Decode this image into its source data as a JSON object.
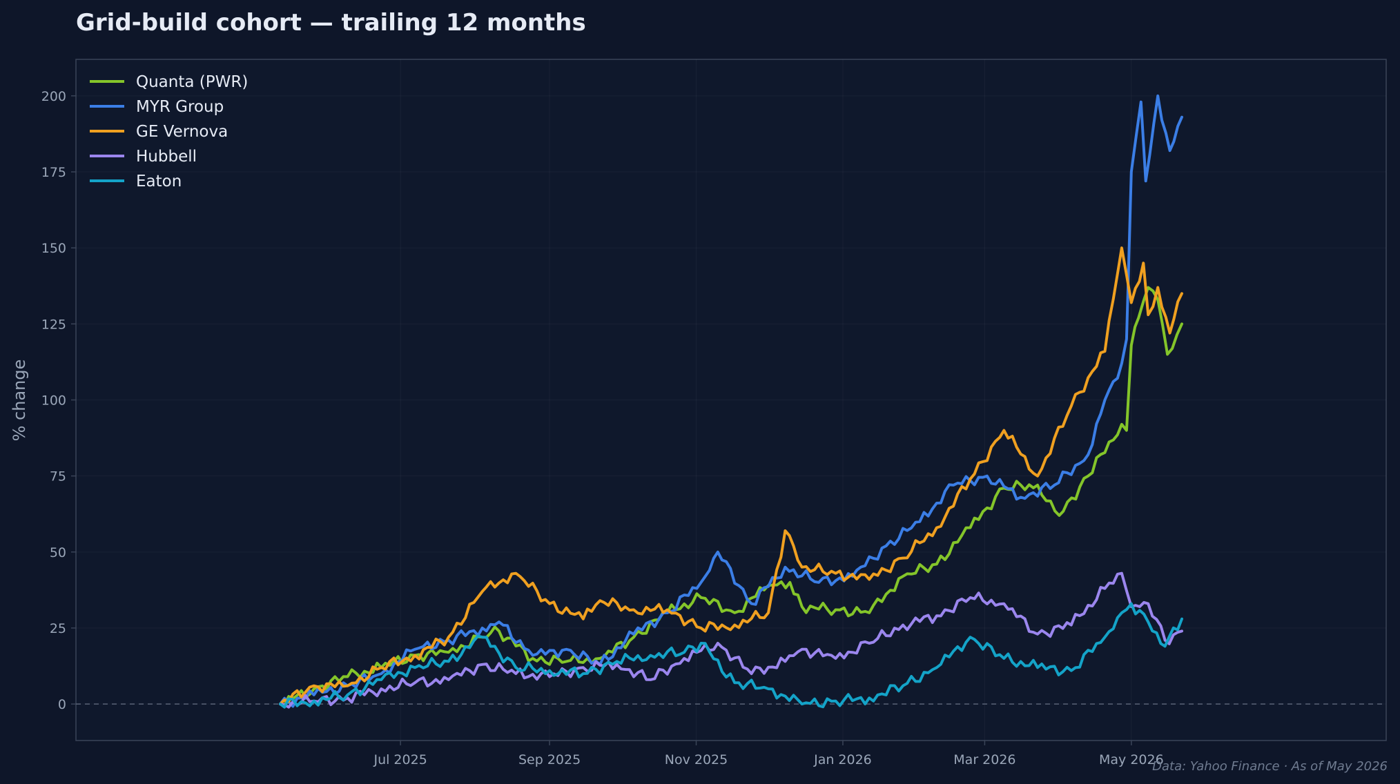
{
  "chart_data": {
    "type": "line",
    "title": "Grid-build cohort — trailing 12 months",
    "xlabel": "",
    "ylabel": "% change",
    "x_range": [
      "2025-05-12",
      "2026-05-22"
    ],
    "ylim": [
      -12,
      212
    ],
    "y_ticks": [
      0,
      25,
      50,
      75,
      100,
      125,
      150,
      175,
      200
    ],
    "x_ticks": [
      {
        "date": "2025-07-01",
        "label": "Jul 2025"
      },
      {
        "date": "2025-09-01",
        "label": "Sep 2025"
      },
      {
        "date": "2025-11-01",
        "label": "Nov 2025"
      },
      {
        "date": "2026-01-01",
        "label": "Jan 2026"
      },
      {
        "date": "2026-03-01",
        "label": "Mar 2026"
      },
      {
        "date": "2026-05-01",
        "label": "May 2026"
      }
    ],
    "grid": true,
    "baseline": 0,
    "legend": "top-left",
    "footnote": "Data: Yahoo Finance · As of May 2026",
    "series": [
      {
        "name": "Quanta (PWR)",
        "color": "#84c52a",
        "points": [
          [
            "2025-05-12",
            0
          ],
          [
            "2025-05-26",
            5
          ],
          [
            "2025-06-09",
            9
          ],
          [
            "2025-06-23",
            12
          ],
          [
            "2025-07-07",
            16
          ],
          [
            "2025-07-21",
            17
          ],
          [
            "2025-08-04",
            22
          ],
          [
            "2025-08-11",
            24
          ],
          [
            "2025-08-25",
            15
          ],
          [
            "2025-09-08",
            14
          ],
          [
            "2025-09-22",
            15
          ],
          [
            "2025-10-06",
            22
          ],
          [
            "2025-10-20",
            30
          ],
          [
            "2025-11-03",
            35
          ],
          [
            "2025-11-17",
            30
          ],
          [
            "2025-12-01",
            39
          ],
          [
            "2025-12-10",
            40
          ],
          [
            "2025-12-15",
            32
          ],
          [
            "2025-12-29",
            31
          ],
          [
            "2026-01-12",
            30
          ],
          [
            "2026-01-26",
            42
          ],
          [
            "2026-02-09",
            46
          ],
          [
            "2026-02-23",
            58
          ],
          [
            "2026-03-09",
            71
          ],
          [
            "2026-03-23",
            72
          ],
          [
            "2026-04-01",
            62
          ],
          [
            "2026-04-13",
            75
          ],
          [
            "2026-04-27",
            92
          ],
          [
            "2026-04-29",
            90
          ],
          [
            "2026-05-01",
            118
          ],
          [
            "2026-05-04",
            127
          ],
          [
            "2026-05-08",
            137
          ],
          [
            "2026-05-12",
            133
          ],
          [
            "2026-05-16",
            115
          ],
          [
            "2026-05-22",
            125
          ]
        ]
      },
      {
        "name": "MYR Group",
        "color": "#3b7ee6",
        "points": [
          [
            "2025-05-12",
            0
          ],
          [
            "2025-05-26",
            3
          ],
          [
            "2025-06-09",
            6
          ],
          [
            "2025-06-23",
            10
          ],
          [
            "2025-07-07",
            18
          ],
          [
            "2025-07-21",
            21
          ],
          [
            "2025-08-04",
            25
          ],
          [
            "2025-08-11",
            27
          ],
          [
            "2025-08-25",
            16
          ],
          [
            "2025-09-08",
            18
          ],
          [
            "2025-09-22",
            13
          ],
          [
            "2025-10-06",
            23
          ],
          [
            "2025-10-20",
            30
          ],
          [
            "2025-11-03",
            40
          ],
          [
            "2025-11-10",
            50
          ],
          [
            "2025-11-24",
            33
          ],
          [
            "2025-12-08",
            45
          ],
          [
            "2025-12-22",
            40
          ],
          [
            "2026-01-05",
            42
          ],
          [
            "2026-01-19",
            52
          ],
          [
            "2026-02-02",
            60
          ],
          [
            "2026-02-16",
            72
          ],
          [
            "2026-03-02",
            75
          ],
          [
            "2026-03-16",
            68
          ],
          [
            "2026-03-30",
            72
          ],
          [
            "2026-04-13",
            82
          ],
          [
            "2026-04-20",
            100
          ],
          [
            "2026-04-27",
            112
          ],
          [
            "2026-04-29",
            120
          ],
          [
            "2026-05-01",
            175
          ],
          [
            "2026-05-05",
            198
          ],
          [
            "2026-05-07",
            172
          ],
          [
            "2026-05-12",
            200
          ],
          [
            "2026-05-17",
            182
          ],
          [
            "2026-05-22",
            193
          ]
        ]
      },
      {
        "name": "GE Vernova",
        "color": "#f0a020",
        "points": [
          [
            "2025-05-12",
            0
          ],
          [
            "2025-05-26",
            6
          ],
          [
            "2025-06-09",
            6
          ],
          [
            "2025-06-23",
            12
          ],
          [
            "2025-07-07",
            16
          ],
          [
            "2025-07-21",
            22
          ],
          [
            "2025-08-04",
            37
          ],
          [
            "2025-08-18",
            43
          ],
          [
            "2025-09-01",
            33
          ],
          [
            "2025-09-15",
            28
          ],
          [
            "2025-09-22",
            34
          ],
          [
            "2025-10-06",
            31
          ],
          [
            "2025-10-20",
            31
          ],
          [
            "2025-11-03",
            25
          ],
          [
            "2025-11-17",
            26
          ],
          [
            "2025-12-01",
            30
          ],
          [
            "2025-12-08",
            57
          ],
          [
            "2025-12-15",
            45
          ],
          [
            "2025-12-29",
            43
          ],
          [
            "2026-01-12",
            41
          ],
          [
            "2026-01-26",
            48
          ],
          [
            "2026-02-09",
            58
          ],
          [
            "2026-02-23",
            74
          ],
          [
            "2026-03-09",
            90
          ],
          [
            "2026-03-23",
            75
          ],
          [
            "2026-04-06",
            98
          ],
          [
            "2026-04-20",
            116
          ],
          [
            "2026-04-27",
            150
          ],
          [
            "2026-05-01",
            132
          ],
          [
            "2026-05-06",
            145
          ],
          [
            "2026-05-08",
            128
          ],
          [
            "2026-05-12",
            137
          ],
          [
            "2026-05-17",
            122
          ],
          [
            "2026-05-22",
            135
          ]
        ]
      },
      {
        "name": "Hubbell",
        "color": "#9b86ee",
        "points": [
          [
            "2025-05-12",
            0
          ],
          [
            "2025-05-26",
            1
          ],
          [
            "2025-06-09",
            2
          ],
          [
            "2025-06-23",
            5
          ],
          [
            "2025-07-07",
            7
          ],
          [
            "2025-07-21",
            8
          ],
          [
            "2025-08-04",
            13
          ],
          [
            "2025-08-18",
            10
          ],
          [
            "2025-09-01",
            9
          ],
          [
            "2025-09-15",
            12
          ],
          [
            "2025-09-29",
            13
          ],
          [
            "2025-10-13",
            8
          ],
          [
            "2025-10-27",
            15
          ],
          [
            "2025-11-10",
            20
          ],
          [
            "2025-11-24",
            10
          ],
          [
            "2025-12-08",
            14
          ],
          [
            "2025-12-15",
            18
          ],
          [
            "2025-12-29",
            15
          ],
          [
            "2026-01-12",
            20
          ],
          [
            "2026-01-26",
            26
          ],
          [
            "2026-02-09",
            29
          ],
          [
            "2026-02-23",
            35
          ],
          [
            "2026-03-09",
            33
          ],
          [
            "2026-03-23",
            23
          ],
          [
            "2026-04-06",
            26
          ],
          [
            "2026-04-20",
            38
          ],
          [
            "2026-04-27",
            43
          ],
          [
            "2026-05-01",
            32
          ],
          [
            "2026-05-08",
            33
          ],
          [
            "2026-05-15",
            21
          ],
          [
            "2026-05-22",
            24
          ]
        ]
      },
      {
        "name": "Eaton",
        "color": "#14a3c8",
        "points": [
          [
            "2025-05-12",
            0
          ],
          [
            "2025-05-26",
            1
          ],
          [
            "2025-06-09",
            3
          ],
          [
            "2025-06-23",
            8
          ],
          [
            "2025-07-07",
            12
          ],
          [
            "2025-07-21",
            14
          ],
          [
            "2025-08-04",
            22
          ],
          [
            "2025-08-18",
            12
          ],
          [
            "2025-09-01",
            11
          ],
          [
            "2025-09-15",
            10
          ],
          [
            "2025-09-29",
            14
          ],
          [
            "2025-10-13",
            16
          ],
          [
            "2025-10-27",
            17
          ],
          [
            "2025-11-03",
            20
          ],
          [
            "2025-11-17",
            7
          ],
          [
            "2025-12-01",
            5
          ],
          [
            "2025-12-15",
            0
          ],
          [
            "2025-12-29",
            1
          ],
          [
            "2026-01-12",
            2
          ],
          [
            "2026-01-26",
            6
          ],
          [
            "2026-02-09",
            12
          ],
          [
            "2026-02-23",
            22
          ],
          [
            "2026-03-09",
            15
          ],
          [
            "2026-03-23",
            12
          ],
          [
            "2026-04-06",
            11
          ],
          [
            "2026-04-20",
            22
          ],
          [
            "2026-04-27",
            30
          ],
          [
            "2026-05-01",
            33
          ],
          [
            "2026-05-08",
            27
          ],
          [
            "2026-05-15",
            19
          ],
          [
            "2026-05-22",
            28
          ]
        ]
      }
    ]
  }
}
